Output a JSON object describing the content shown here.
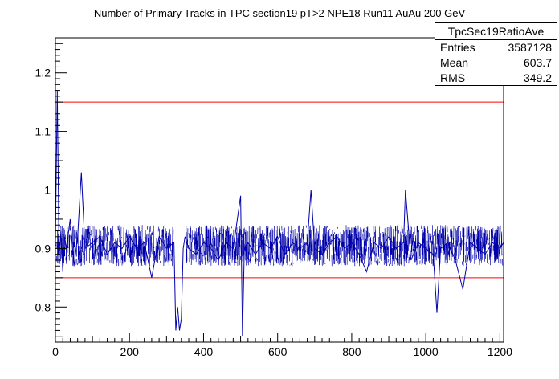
{
  "chart_data": {
    "type": "line",
    "title": "Number of Primary Tracks in TPC section19 pT>2 NPE18 Run11 AuAu 200 GeV",
    "xlabel": "",
    "ylabel": "",
    "xlim": [
      0,
      1210
    ],
    "ylim": [
      0.74,
      1.26
    ],
    "x_ticks": [
      "0",
      "200",
      "400",
      "600",
      "800",
      "1000",
      "1200"
    ],
    "y_ticks": [
      "0.8",
      "0.9",
      "1",
      "1.1",
      "1.2"
    ],
    "reference_lines": [
      {
        "y": 1.15,
        "style": "solid",
        "color": "#ff0000"
      },
      {
        "y": 1.0,
        "style": "dashed",
        "color": "#ff0000"
      },
      {
        "y": 0.85,
        "style": "solid",
        "color": "#ff0000"
      }
    ],
    "series_color": "#0000aa",
    "series_baseline": 0.905,
    "series": [
      {
        "x": [
          0,
          5,
          10,
          15,
          20,
          25,
          30,
          40,
          50,
          60,
          70,
          80,
          100,
          120,
          140,
          160,
          180,
          200,
          220,
          240,
          260,
          280,
          300,
          320,
          325,
          330,
          335,
          340,
          345,
          350,
          360,
          380,
          400,
          420,
          440,
          460,
          480,
          500,
          505,
          510,
          520,
          540,
          560,
          580,
          600,
          620,
          640,
          660,
          680,
          690,
          700,
          720,
          740,
          760,
          780,
          800,
          820,
          840,
          860,
          880,
          900,
          920,
          940,
          945,
          960,
          980,
          1000,
          1020,
          1030,
          1040,
          1060,
          1080,
          1100,
          1120,
          1140,
          1160,
          1180,
          1200,
          1210
        ],
        "y": [
          0.91,
          1.17,
          0.88,
          0.93,
          0.86,
          0.92,
          0.9,
          0.95,
          0.87,
          0.92,
          1.03,
          0.9,
          0.91,
          0.92,
          0.89,
          0.91,
          0.9,
          0.92,
          0.9,
          0.91,
          0.85,
          0.92,
          0.9,
          0.91,
          0.76,
          0.8,
          0.76,
          0.78,
          0.9,
          0.92,
          0.9,
          0.89,
          0.91,
          0.9,
          0.88,
          0.91,
          0.9,
          0.99,
          0.75,
          0.9,
          0.91,
          0.89,
          0.91,
          0.9,
          0.92,
          0.89,
          0.91,
          0.9,
          0.91,
          1.0,
          0.9,
          0.89,
          0.91,
          0.92,
          0.9,
          0.91,
          0.89,
          0.86,
          0.91,
          0.9,
          0.92,
          0.9,
          0.91,
          1.0,
          0.88,
          0.91,
          0.9,
          0.89,
          0.79,
          0.9,
          0.91,
          0.88,
          0.83,
          0.91,
          0.9,
          0.89,
          0.91,
          0.9,
          0.91
        ]
      }
    ]
  },
  "stats": {
    "name": "TpcSec19RatioAve",
    "rows": [
      {
        "label": "Entries",
        "value": "3587128"
      },
      {
        "label": "Mean",
        "value": "603.7"
      },
      {
        "label": "RMS",
        "value": "349.2"
      }
    ]
  }
}
